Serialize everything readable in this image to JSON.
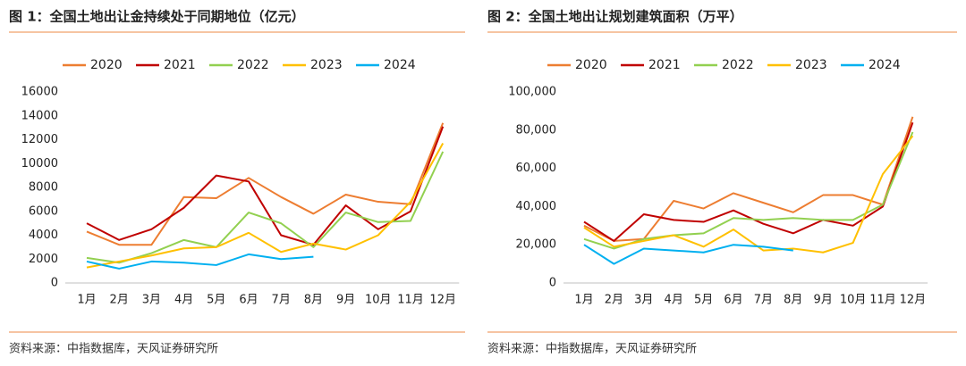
{
  "chart_data": [
    {
      "type": "line",
      "title": "图 1：全国土地出让金持续处于同期地位（亿元）",
      "source": "资料来源：中指数据库，天风证券研究所",
      "categories": [
        "1月",
        "2月",
        "3月",
        "4月",
        "5月",
        "6月",
        "7月",
        "8月",
        "9月",
        "10月",
        "11月",
        "12月"
      ],
      "ylim": [
        0,
        16000
      ],
      "yticks": [
        0,
        2000,
        4000,
        6000,
        8000,
        10000,
        12000,
        14000,
        16000
      ],
      "series": [
        {
          "name": "2020",
          "color": "#ED7D31",
          "values": [
            4300,
            3200,
            3200,
            7200,
            7100,
            8800,
            7200,
            5800,
            7400,
            6800,
            6600,
            13400
          ]
        },
        {
          "name": "2021",
          "color": "#C00000",
          "values": [
            5000,
            3600,
            4500,
            6300,
            9000,
            8500,
            4000,
            3200,
            6500,
            4500,
            6000,
            13100
          ]
        },
        {
          "name": "2022",
          "color": "#92D050",
          "values": [
            2100,
            1700,
            2500,
            3600,
            3000,
            5900,
            5000,
            3000,
            5900,
            5100,
            5200,
            11000
          ]
        },
        {
          "name": "2023",
          "color": "#FFC000",
          "values": [
            1300,
            1800,
            2300,
            2900,
            3000,
            4200,
            2600,
            3300,
            2800,
            4000,
            6800,
            11700
          ]
        },
        {
          "name": "2024",
          "color": "#00B0F0",
          "values": [
            1800,
            1200,
            1800,
            1700,
            1500,
            2400,
            2000,
            2200,
            null,
            null,
            null,
            null
          ]
        }
      ]
    },
    {
      "type": "line",
      "title": "图 2：全国土地出让规划建筑面积（万平）",
      "source": "资料来源：中指数据库，天风证券研究所",
      "categories": [
        "1月",
        "2月",
        "3月",
        "4月",
        "5月",
        "6月",
        "7月",
        "8月",
        "9月",
        "10月",
        "11月",
        "12月"
      ],
      "ylim": [
        0,
        100000
      ],
      "yticks": [
        0,
        {
          "value": 20000,
          "label": "20,000"
        },
        {
          "value": 40000,
          "label": "40,000"
        },
        {
          "value": 60000,
          "label": "60,000"
        },
        {
          "value": 80000,
          "label": "80,000"
        },
        {
          "value": 100000,
          "label": "100,000"
        }
      ],
      "series": [
        {
          "name": "2020",
          "color": "#ED7D31",
          "values": [
            30000,
            22000,
            23000,
            43000,
            39000,
            47000,
            42000,
            37000,
            46000,
            46000,
            41000,
            87000
          ]
        },
        {
          "name": "2021",
          "color": "#C00000",
          "values": [
            32000,
            22000,
            36000,
            33000,
            32000,
            38000,
            31000,
            26000,
            33000,
            30000,
            40000,
            84000
          ]
        },
        {
          "name": "2022",
          "color": "#92D050",
          "values": [
            23000,
            18000,
            23000,
            25000,
            26000,
            34000,
            33000,
            34000,
            33000,
            33000,
            41000,
            79000
          ]
        },
        {
          "name": "2023",
          "color": "#FFC000",
          "values": [
            29000,
            19000,
            22000,
            25000,
            19000,
            28000,
            17000,
            18000,
            16000,
            21000,
            57000,
            77000
          ]
        },
        {
          "name": "2024",
          "color": "#00B0F0",
          "values": [
            20000,
            10000,
            18000,
            17000,
            16000,
            20000,
            19000,
            17000,
            null,
            null,
            null,
            null
          ]
        }
      ]
    }
  ]
}
